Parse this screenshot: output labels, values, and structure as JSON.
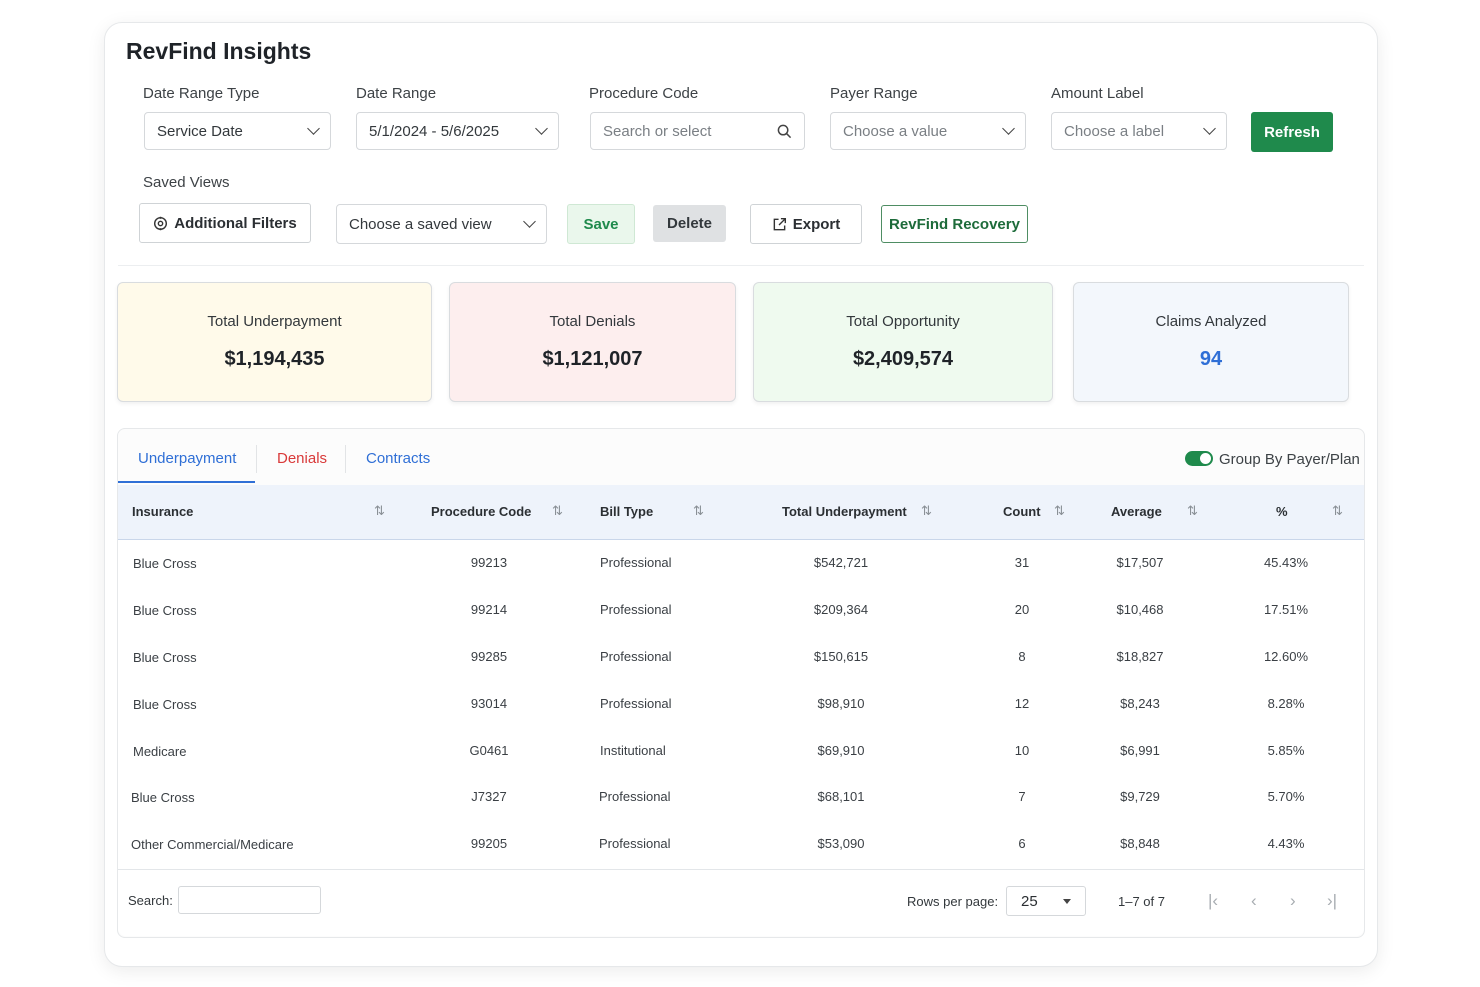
{
  "app": {
    "title": "RevFind Insights"
  },
  "filters": {
    "date_range_type": {
      "label": "Date Range Type",
      "value": "Service Date"
    },
    "date_range": {
      "label": "Date Range",
      "value": "5/1/2024 - 5/6/2025"
    },
    "procedure_code": {
      "label": "Procedure Code",
      "placeholder": "Search or select"
    },
    "payer_range": {
      "label": "Payer Range",
      "placeholder": "Choose a value"
    },
    "amount_label": {
      "label": "Amount Label",
      "placeholder": "Choose a label"
    },
    "refresh_label": "Refresh"
  },
  "saved_views": {
    "label": "Saved Views",
    "additional_filters_label": "Additional Filters",
    "saved_view_placeholder": "Choose a saved view",
    "save_label": "Save",
    "delete_label": "Delete",
    "export_label": "Export",
    "recovery_label": "RevFind Recovery"
  },
  "stats": [
    {
      "label": "Total Underpayment",
      "value": "$1,194,435",
      "bg": "#fffaea"
    },
    {
      "label": "Total Denials",
      "value": "$1,121,007",
      "bg": "#fdeeee"
    },
    {
      "label": "Total Opportunity",
      "value": "$2,409,574",
      "bg": "#effaef"
    },
    {
      "label": "Claims Analyzed",
      "value": "94",
      "bg": "#f3f7fc",
      "value_color": "#2f6fd6"
    }
  ],
  "tabs": [
    {
      "label": "Underpayment",
      "color": "#2f6fd6",
      "active": true
    },
    {
      "label": "Denials",
      "color": "#d93a3a"
    },
    {
      "label": "Contracts",
      "color": "#2f6fd6"
    }
  ],
  "group_toggle": {
    "label": "Group By Payer/Plan",
    "on": true
  },
  "table": {
    "columns": [
      "Insurance",
      "Procedure Code",
      "Bill Type",
      "Total Underpayment",
      "Count",
      "Average",
      "%"
    ],
    "rows": [
      [
        "Blue Cross",
        "99213",
        "Professional",
        "$542,721",
        "31",
        "$17,507",
        "45.43%"
      ],
      [
        "Blue Cross",
        "99214",
        "Professional",
        "$209,364",
        "20",
        "$10,468",
        "17.51%"
      ],
      [
        "Blue Cross",
        "99285",
        "Professional",
        "$150,615",
        "8",
        "$18,827",
        "12.60%"
      ],
      [
        "Blue Cross",
        "93014",
        "Professional",
        "$98,910",
        "12",
        "$8,243",
        "8.28%"
      ],
      [
        "Medicare",
        "G0461",
        "Institutional",
        "$69,910",
        "10",
        "$6,991",
        "5.85%"
      ],
      [
        "Blue Cross",
        "J7327",
        "Professional",
        "$68,101",
        "7",
        "$9,729",
        "5.70%"
      ],
      [
        "Other Commercial/Medicare",
        "99205",
        "Professional",
        "$53,090",
        "6",
        "$8,848",
        "4.43%"
      ]
    ]
  },
  "footer": {
    "search_label": "Search:",
    "rows_per_page_label": "Rows per page:",
    "rows_per_page_value": "25",
    "range_text": "1–7 of 7",
    "first_icon": "first-page-icon",
    "prev_icon": "prev-page-icon",
    "next_icon": "next-page-icon",
    "last_icon": "last-page-icon"
  }
}
